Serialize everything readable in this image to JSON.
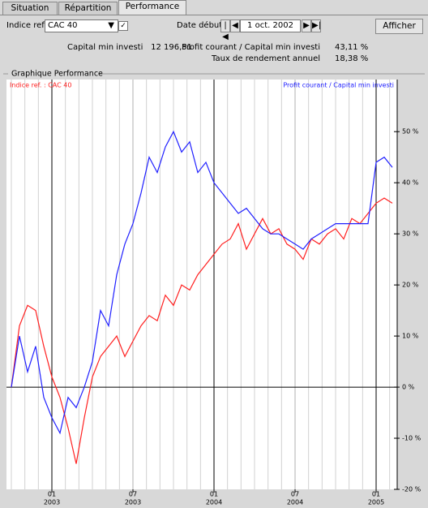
{
  "tabs": [
    "Situation",
    "Répartition",
    "Performance"
  ],
  "active_tab": 2,
  "controls": {
    "index_label": "Indice ref.",
    "index_value": "CAC 40",
    "checkbox_checked": true,
    "date_label": "Date début",
    "date_value": "1 oct. 2002",
    "button": "Afficher"
  },
  "stats": [
    {
      "label": "Capital min investi",
      "value": "12 196,51"
    },
    {
      "label": "Profit courant / Capital min investi",
      "value": "43,11 %"
    },
    {
      "label": "Taux de rendement annuel",
      "value": "18,38 %"
    }
  ],
  "chart_data": {
    "type": "line",
    "title": "Graphique Performance",
    "x": [
      2002.75,
      2002.8,
      2002.85,
      2002.9,
      2002.95,
      2003.0,
      2003.05,
      2003.1,
      2003.15,
      2003.2,
      2003.25,
      2003.3,
      2003.35,
      2003.4,
      2003.45,
      2003.5,
      2003.55,
      2003.6,
      2003.65,
      2003.7,
      2003.75,
      2003.8,
      2003.85,
      2003.9,
      2003.95,
      2004.0,
      2004.05,
      2004.1,
      2004.15,
      2004.2,
      2004.25,
      2004.3,
      2004.35,
      2004.4,
      2004.45,
      2004.5,
      2004.55,
      2004.6,
      2004.65,
      2004.7,
      2004.75,
      2004.8,
      2004.85,
      2004.9,
      2004.95,
      2005.0,
      2005.05,
      2005.1
    ],
    "series": [
      {
        "name": "Indice ref. : CAC 40",
        "color": "#ff2020",
        "legend": "left",
        "values": [
          0,
          12,
          16,
          15,
          8,
          2,
          -2,
          -8,
          -15,
          -6,
          2,
          6,
          8,
          10,
          6,
          9,
          12,
          14,
          13,
          18,
          16,
          20,
          19,
          22,
          24,
          26,
          28,
          29,
          32,
          27,
          30,
          33,
          30,
          31,
          28,
          27,
          25,
          29,
          28,
          30,
          31,
          29,
          33,
          32,
          34,
          36,
          37,
          36
        ]
      },
      {
        "name": "Profit courant / Capital min investi",
        "color": "#2020ff",
        "legend": "right",
        "values": [
          0,
          10,
          3,
          8,
          -2,
          -6,
          -9,
          -2,
          -4,
          0,
          5,
          15,
          12,
          22,
          28,
          32,
          38,
          45,
          42,
          47,
          50,
          46,
          48,
          42,
          44,
          40,
          38,
          36,
          34,
          35,
          33,
          31,
          30,
          30,
          29,
          28,
          27,
          29,
          30,
          31,
          32,
          32,
          32,
          32,
          32,
          44,
          45,
          43
        ]
      }
    ],
    "xlim": [
      2002.72,
      2005.13
    ],
    "xticks": [
      {
        "value": 2003,
        "label": [
          "01",
          "2003"
        ]
      },
      {
        "value": 2003.5,
        "label": [
          "07",
          "2003"
        ]
      },
      {
        "value": 2004,
        "label": [
          "01",
          "2004"
        ]
      },
      {
        "value": 2004.5,
        "label": [
          "07",
          "2004"
        ]
      },
      {
        "value": 2005,
        "label": [
          "01",
          "2005"
        ]
      }
    ],
    "xminorticks": [
      2002.75,
      2002.8333,
      2002.9167,
      2003.0833,
      2003.1667,
      2003.25,
      2003.3333,
      2003.4167,
      2003.5833,
      2003.6667,
      2003.75,
      2003.8333,
      2003.9167,
      2004.0833,
      2004.1667,
      2004.25,
      2004.3333,
      2004.4167,
      2004.5833,
      2004.6667,
      2004.75,
      2004.8333,
      2004.9167,
      2005.0833
    ],
    "ylim": [
      -20,
      60.2
    ],
    "yticks": [
      {
        "value": -20,
        "label": "-20 %"
      },
      {
        "value": -10,
        "label": "-10 %"
      },
      {
        "value": 0,
        "label": "0 %"
      },
      {
        "value": 10,
        "label": "10 %"
      },
      {
        "value": 20,
        "label": "20 %"
      },
      {
        "value": 30,
        "label": "30 %"
      },
      {
        "value": 40,
        "label": "40 %"
      },
      {
        "value": 50,
        "label": "50 %"
      }
    ],
    "zero_line": true
  }
}
